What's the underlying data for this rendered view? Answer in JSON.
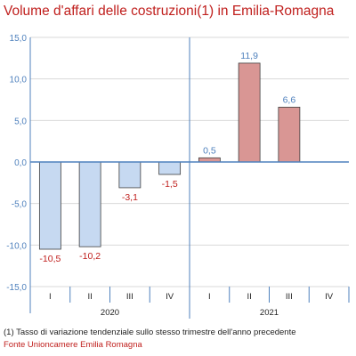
{
  "title": "Volume d'affari delle costruzioni(1) in Emilia-Romagna",
  "footnote": "(1) Tasso di variazione tendenziale sullo stesso trimestre dell'anno precedente",
  "source": "Fonte Unioncamere Emilia Romagna",
  "colors": {
    "title": "#c0201e",
    "axis": "#4f81bd",
    "axis_labels": "#4f81bd",
    "grid": "#d9d9d9",
    "negative_fill": "#c6d9f1",
    "positive_fill": "#d99694",
    "bar_border": "#404040",
    "negative_label": "#c0201e",
    "positive_label": "#4f81bd"
  },
  "chart_data": {
    "type": "bar",
    "title": "Volume d'affari delle costruzioni(1) in Emilia-Romagna",
    "categories": [
      "I",
      "II",
      "III",
      "IV",
      "I",
      "II",
      "III",
      "IV"
    ],
    "groups": [
      {
        "label": "2020",
        "categories": [
          "I",
          "II",
          "III",
          "IV"
        ]
      },
      {
        "label": "2021",
        "categories": [
          "I",
          "II",
          "III",
          "IV"
        ]
      }
    ],
    "values": [
      -10.5,
      -10.2,
      -3.1,
      -1.5,
      0.5,
      11.9,
      6.6,
      null
    ],
    "value_labels": [
      "-10,5",
      "-10,2",
      "-3,1",
      "-1,5",
      "0,5",
      "11,9",
      "6,6",
      ""
    ],
    "ylim": [
      -15,
      15
    ],
    "yticks": [
      15,
      10,
      5,
      0,
      -5,
      -10,
      -15
    ],
    "ytick_labels": [
      "15,0",
      "10,0",
      "5,0",
      "0,0",
      "-5,0",
      "-10,0",
      "-15,0"
    ],
    "grid": true,
    "legend": "none"
  }
}
